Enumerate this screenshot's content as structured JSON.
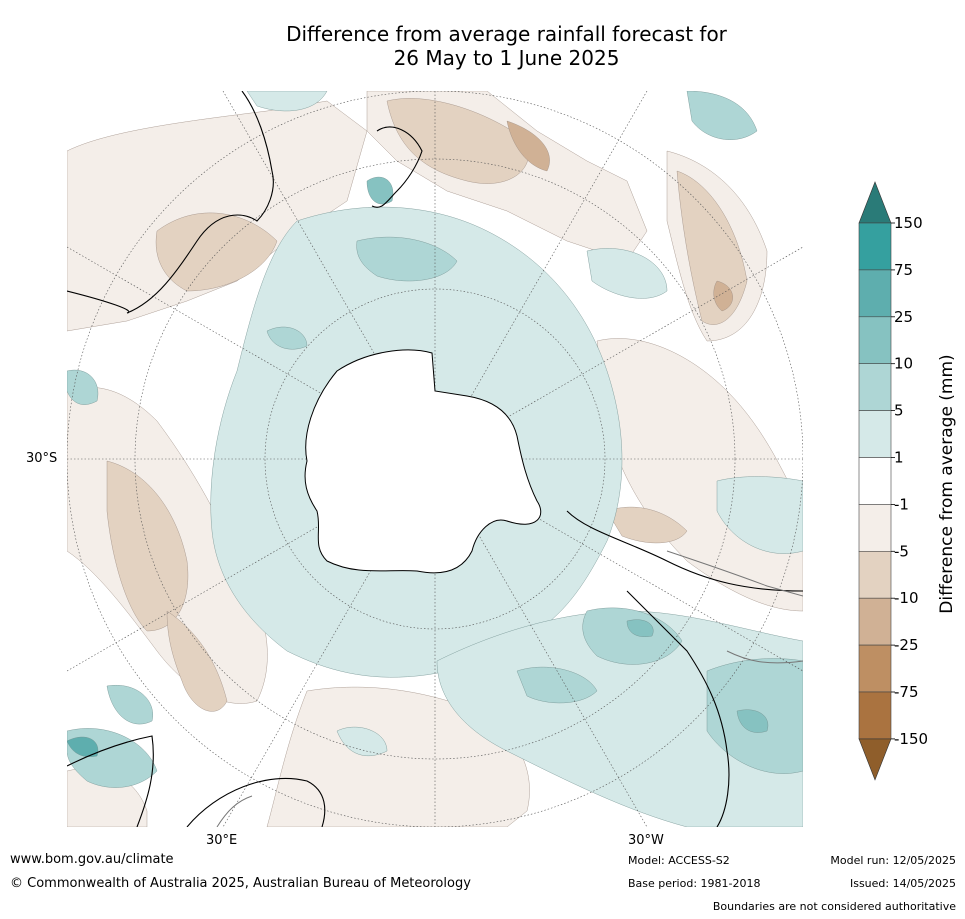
{
  "title": {
    "line1": "Difference from average rainfall forecast for",
    "line2": "26 May to 1 June 2025"
  },
  "map": {
    "projection": "south polar stereographic",
    "lat_label": "30°S",
    "lon_label_left": "30°E",
    "lon_label_right": "30°W"
  },
  "colorbar": {
    "title": "Difference from average (mm)",
    "ticks": [
      "150",
      "75",
      "25",
      "10",
      "5",
      "1",
      "-1",
      "-5",
      "-10",
      "-25",
      "-75",
      "-150"
    ],
    "colors": [
      "#2a7b78",
      "#35a09f",
      "#5eaeae",
      "#86c2c1",
      "#aed6d5",
      "#d5e9e8",
      "#ffffff",
      "#f4eee9",
      "#e3d2c1",
      "#d0b195",
      "#be8f63",
      "#aa7340",
      "#8f5e2b"
    ]
  },
  "footer": {
    "website": "www.bom.gov.au/climate",
    "copyright": "© Commonwealth of Australia 2025, Australian Bureau of Meteorology",
    "model": "Model: ACCESS-S2",
    "base_period": "Base period: 1981-2018",
    "model_run": "Model run: 12/05/2025",
    "issued": "Issued: 14/05/2025",
    "disclaimer": "Boundaries are not considered authoritative"
  }
}
